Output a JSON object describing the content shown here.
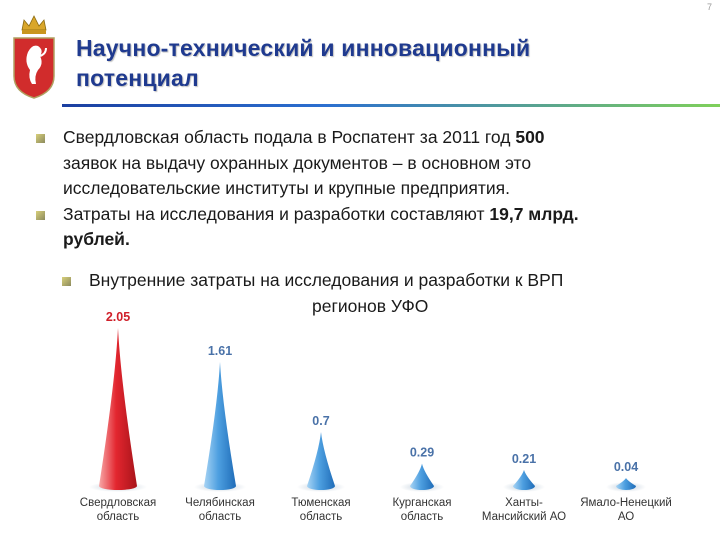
{
  "page_number": "7",
  "title": {
    "line1": "Научно-технический и инновационный",
    "line2": "потенциал"
  },
  "bullets": [
    {
      "line1_pre": "Свердловская область подала в Роспатент за 2011 год ",
      "line1_bold": "500",
      "line2": "заявок на выдачу охранных документов – в основном это",
      "line3": "исследовательские институты и крупные предприятия."
    },
    {
      "line1_pre": "Затраты на исследования и разработки составляют ",
      "line1_bold": "19,7 млрд.",
      "line2_bold": "рублей."
    }
  ],
  "sub_bullet": {
    "line1": "Внутренние затраты на исследования и разработки к ВРП",
    "line2": "регионов УФО"
  },
  "chart_data": {
    "type": "bar",
    "shape": "cone",
    "title": "",
    "categories": [
      [
        "Свердловская",
        "область"
      ],
      [
        "Челябинская",
        "область"
      ],
      [
        "Тюменская",
        "область"
      ],
      [
        "Курганская",
        "область"
      ],
      [
        "Ханты-",
        "Мансийский АО"
      ],
      [
        "Ямало-Ненецкий",
        "АО"
      ]
    ],
    "values": [
      2.05,
      1.61,
      0.7,
      0.29,
      0.21,
      0.04
    ],
    "value_labels": [
      "2.05",
      "1.61",
      "0.7",
      "0.29",
      "0.21",
      "0.04"
    ],
    "ylim": [
      0,
      2.05
    ],
    "grid": false,
    "legend": "none",
    "colors": {
      "highlight": "#e0242c",
      "highlight_label": "#d0202a",
      "default": "#3a8fd4",
      "label": "#4a72a8",
      "category_text": "#333333"
    }
  }
}
